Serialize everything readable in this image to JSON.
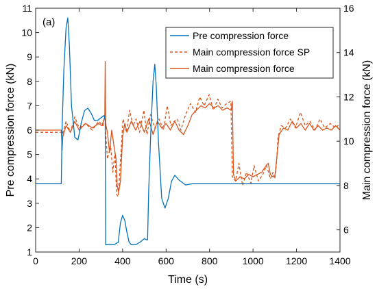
{
  "chart_data": {
    "type": "line",
    "panel_label": "(a)",
    "xlabel": "Time (s)",
    "ylabel_left": "Pre compression force (kN)",
    "ylabel_right": "Main compression force (kN)",
    "xlim": [
      0,
      1400
    ],
    "ylim_left": [
      1,
      11
    ],
    "ylim_right": [
      5,
      16
    ],
    "x_ticks": [
      0,
      200,
      400,
      600,
      800,
      1000,
      1200,
      1400
    ],
    "y_left_ticks": [
      1,
      2,
      3,
      4,
      5,
      6,
      7,
      8,
      9,
      10,
      11
    ],
    "y_right_ticks": [
      6,
      8,
      10,
      12,
      14,
      16
    ],
    "legend_position": "top-right",
    "grid": false,
    "colors": {
      "pre": "#0072BD",
      "main": "#D95319"
    },
    "series": [
      {
        "name": "Pre compression force",
        "axis": "left",
        "style": "solid",
        "color": "#0072BD",
        "x": [
          0,
          118,
          122,
          130,
          140,
          148,
          155,
          165,
          180,
          195,
          210,
          225,
          240,
          255,
          270,
          285,
          300,
          315,
          320,
          322,
          330,
          360,
          380,
          390,
          400,
          410,
          420,
          430,
          440,
          460,
          480,
          500,
          510,
          515,
          520,
          530,
          540,
          548,
          555,
          565,
          580,
          595,
          610,
          625,
          640,
          660,
          690,
          720,
          760,
          800,
          900,
          1000,
          1100,
          1200,
          1300,
          1400
        ],
        "y": [
          3.8,
          3.8,
          6.2,
          8.5,
          10.2,
          10.6,
          9.5,
          7.0,
          5.7,
          5.6,
          6.3,
          6.8,
          6.9,
          6.7,
          6.4,
          6.4,
          6.5,
          6.6,
          6.4,
          1.3,
          1.3,
          1.3,
          1.4,
          2.2,
          2.5,
          2.3,
          1.8,
          1.4,
          1.3,
          1.3,
          1.4,
          1.55,
          1.5,
          1.5,
          3.5,
          6.0,
          8.0,
          8.7,
          7.8,
          5.5,
          3.2,
          2.8,
          3.2,
          3.9,
          4.15,
          3.95,
          3.75,
          3.8,
          3.8,
          3.8,
          3.8,
          3.8,
          3.8,
          3.8,
          3.8,
          3.8
        ]
      },
      {
        "name": "Main compression force SP",
        "axis": "right",
        "style": "dashed",
        "color": "#D95319",
        "x": [
          0,
          118,
          120,
          140,
          160,
          180,
          200,
          230,
          260,
          290,
          310,
          318,
          322,
          330,
          345,
          355,
          365,
          372,
          380,
          392,
          402,
          418,
          432,
          448,
          462,
          478,
          498,
          512,
          528,
          548,
          568,
          588,
          605,
          622,
          638,
          652,
          668,
          690,
          712,
          735,
          755,
          775,
          798,
          818,
          838,
          858,
          878,
          898,
          905,
          912,
          920,
          935,
          952,
          970,
          990,
          1005,
          1025,
          1045,
          1062,
          1080,
          1092,
          1100,
          1108,
          1115,
          1130,
          1150,
          1172,
          1195,
          1218,
          1240,
          1262,
          1285,
          1308,
          1330,
          1355,
          1380,
          1400
        ],
        "y": [
          10.4,
          10.4,
          10.2,
          10.9,
          10.4,
          11.1,
          10.6,
          10.8,
          10.5,
          10.9,
          10.7,
          11.2,
          10.4,
          9.2,
          9.8,
          8.6,
          9.5,
          7.6,
          7.5,
          9.4,
          11.0,
          10.4,
          11.4,
          10.7,
          11.0,
          10.4,
          11.4,
          10.3,
          11.2,
          10.6,
          11.0,
          10.5,
          11.6,
          10.7,
          10.9,
          11.0,
          10.5,
          11.2,
          11.7,
          11.3,
          12.0,
          11.6,
          12.1,
          11.4,
          11.9,
          11.5,
          11.7,
          11.8,
          8.4,
          8.3,
          8.2,
          9.0,
          8.0,
          8.6,
          8.1,
          8.9,
          8.2,
          8.5,
          8.9,
          8.3,
          8.6,
          8.3,
          9.0,
          10.2,
          10.7,
          10.6,
          11.0,
          10.6,
          11.3,
          10.7,
          10.9,
          10.5,
          11.0,
          10.6,
          10.8,
          10.6,
          10.8
        ]
      },
      {
        "name": "Main compression force",
        "axis": "right",
        "style": "solid",
        "color": "#D95319",
        "x": [
          0,
          118,
          122,
          125,
          140,
          160,
          180,
          200,
          230,
          260,
          290,
          305,
          318,
          320,
          322,
          330,
          340,
          350,
          360,
          370,
          375,
          382,
          390,
          400,
          410,
          420,
          440,
          460,
          480,
          500,
          520,
          540,
          560,
          580,
          600,
          620,
          640,
          660,
          680,
          700,
          720,
          740,
          760,
          780,
          800,
          820,
          840,
          860,
          880,
          900,
          905,
          910,
          920,
          940,
          960,
          980,
          1000,
          1020,
          1040,
          1060,
          1070,
          1080,
          1090,
          1100,
          1110,
          1120,
          1140,
          1160,
          1180,
          1200,
          1220,
          1240,
          1260,
          1280,
          1300,
          1320,
          1340,
          1360,
          1380,
          1400
        ],
        "y": [
          10.5,
          10.5,
          9.6,
          10.2,
          10.7,
          10.4,
          10.9,
          10.5,
          10.8,
          10.6,
          10.8,
          10.7,
          11.1,
          13.6,
          10.8,
          10.4,
          9.5,
          10.5,
          9.8,
          9.2,
          8.0,
          7.7,
          8.2,
          10.2,
          10.8,
          10.4,
          10.9,
          10.5,
          10.9,
          10.4,
          11.0,
          10.3,
          10.9,
          10.6,
          10.8,
          10.5,
          10.9,
          10.5,
          10.3,
          10.7,
          11.2,
          11.4,
          11.6,
          11.5,
          11.7,
          11.5,
          11.6,
          11.4,
          11.5,
          11.4,
          11.8,
          8.5,
          8.2,
          8.4,
          8.3,
          8.5,
          8.4,
          8.5,
          8.6,
          8.9,
          9.0,
          8.5,
          8.4,
          8.4,
          9.3,
          10.3,
          10.6,
          10.5,
          10.9,
          10.6,
          10.8,
          10.5,
          10.8,
          10.5,
          10.7,
          10.5,
          10.6,
          10.5,
          10.7,
          10.5
        ]
      }
    ]
  }
}
